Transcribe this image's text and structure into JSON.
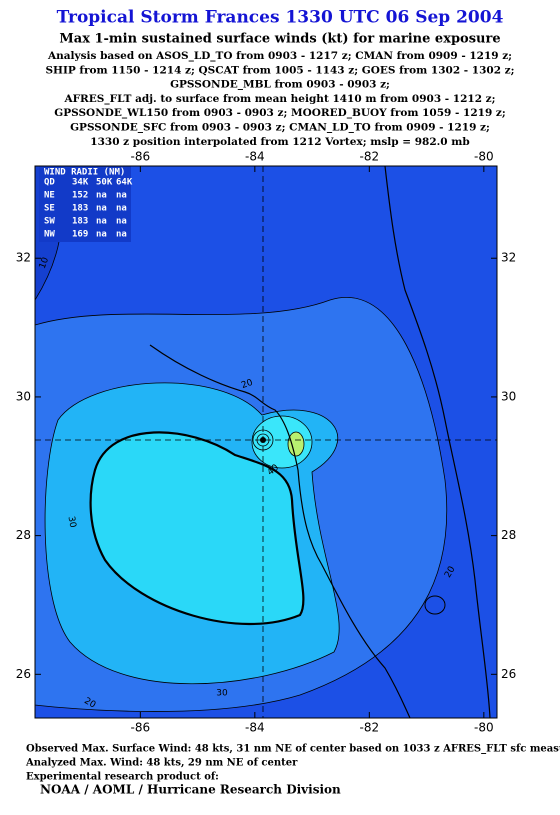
{
  "header": {
    "title": "Tropical Storm Frances 1330 UTC 06 Sep 2004",
    "subtitle": "Max 1-min sustained surface winds (kt) for marine exposure",
    "lines": [
      "Analysis based on  ASOS_LD_TO from 0903 - 1217 z;  CMAN from 0909 - 1219 z;",
      "SHIP from 1150 - 1214 z;  QSCAT from 1005 - 1143 z;  GOES from 1302 - 1302 z;",
      "GPSSONDE_MBL from 0903 - 0903 z;",
      "AFRES_FLT adj. to surface from mean height 1410 m from 0903 - 1212 z;",
      "GPSSONDE_WL150 from 0903 - 0903 z;  MOORED_BUOY from 1059 - 1219 z;",
      "GPSSONDE_SFC from 0903 - 0903 z;  CMAN_LD_TO from 0909 - 1219 z;",
      "1330 z position interpolated from 1212 Vortex; mslp = 982.0 mb"
    ]
  },
  "map": {
    "xlim": [
      -87.84,
      -79.77
    ],
    "ylim": [
      25.37,
      33.33
    ],
    "xticks": [
      -86,
      -84,
      -82,
      -80
    ],
    "yticks": [
      26,
      28,
      30,
      32
    ],
    "wind_radii": {
      "title": "WIND RADII (NM)",
      "columns": [
        "QD",
        "34K",
        "50K",
        "64K"
      ],
      "rows": [
        [
          "NE",
          "152",
          "na",
          "na"
        ],
        [
          "SE",
          "183",
          "na",
          "na"
        ],
        [
          "SW",
          "183",
          "na",
          "na"
        ],
        [
          "NW",
          "169",
          "na",
          "na"
        ]
      ]
    },
    "contour_labels": [
      10,
      20,
      30,
      30,
      20,
      40,
      20
    ]
  },
  "footer": {
    "lines": [
      "Observed Max. Surface Wind: 48 kts, 31 nm NE of center based on 1033 z AFRES_FLT sfc measurement",
      "Analyzed Max. Wind: 48 kts, 29 nm NE of center",
      "Experimental research product of:"
    ],
    "org": "NOAA / AOML / Hurricane Research Division"
  }
}
